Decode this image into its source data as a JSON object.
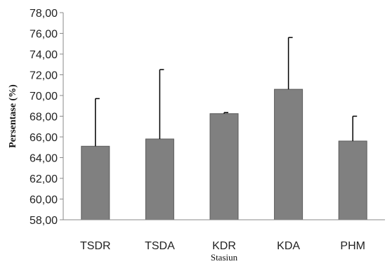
{
  "chart_data": {
    "type": "bar",
    "categories": [
      "TSDR",
      "TSDA",
      "KDR",
      "KDA",
      "PHM"
    ],
    "values": [
      65.1,
      65.8,
      68.25,
      70.6,
      65.6
    ],
    "error_upper": [
      69.7,
      72.5,
      68.35,
      75.6,
      68.0
    ],
    "ylabel": "Persentase (%)",
    "xlabel": "Stasiun",
    "ylim": [
      58,
      78
    ],
    "yticks": [
      "58,00",
      "60,00",
      "62,00",
      "64,00",
      "66,00",
      "68,00",
      "70,00",
      "72,00",
      "74,00",
      "76,00",
      "78,00"
    ],
    "grid": false,
    "colors": {
      "bar": "#808080",
      "bar_stroke": "#5a5a5a",
      "axis": "#888888",
      "error_bar": "#000000"
    }
  }
}
